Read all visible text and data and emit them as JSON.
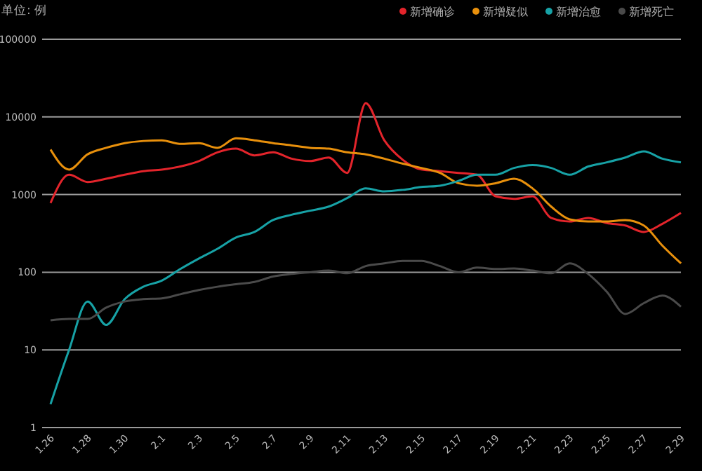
{
  "chart_data": {
    "type": "line",
    "ylabel": "单位: 例",
    "categories": [
      "1.26",
      null,
      "1.28",
      null,
      "1.30",
      null,
      "2.1",
      null,
      "2.3",
      null,
      "2.5",
      null,
      "2.7",
      null,
      "2.9",
      null,
      "2.11",
      null,
      "2.13",
      null,
      "2.15",
      null,
      "2.17",
      null,
      "2.19",
      null,
      "2.21",
      null,
      "2.23",
      null,
      "2.25",
      null,
      "2.27",
      null,
      "2.29"
    ],
    "series": [
      {
        "name": "新增确诊",
        "color": "#e3242b",
        "values": [
          780,
          1800,
          1450,
          1600,
          1800,
          2000,
          2100,
          2300,
          2700,
          3500,
          3900,
          3200,
          3500,
          2900,
          2700,
          3000,
          1900,
          15000,
          5000,
          2800,
          2100,
          2000,
          1900,
          1800,
          950,
          880,
          950,
          500,
          450,
          500,
          430,
          400,
          330,
          420,
          580
        ]
      },
      {
        "name": "新增疑似",
        "color": "#e8900c",
        "values": [
          3800,
          2100,
          3300,
          4000,
          4600,
          4900,
          5000,
          4500,
          4600,
          4000,
          5300,
          5000,
          4600,
          4300,
          4000,
          3900,
          3500,
          3300,
          2900,
          2500,
          2200,
          1900,
          1400,
          1300,
          1400,
          1600,
          1200,
          700,
          480,
          450,
          450,
          470,
          400,
          220,
          130
        ]
      },
      {
        "name": "新增治愈",
        "color": "#17a2a6",
        "values": [
          2,
          10,
          42,
          21,
          45,
          65,
          78,
          110,
          150,
          200,
          280,
          330,
          470,
          550,
          620,
          700,
          900,
          1200,
          1100,
          1150,
          1250,
          1300,
          1500,
          1800,
          1800,
          2200,
          2400,
          2200,
          1800,
          2300,
          2600,
          3000,
          3600,
          2900,
          2600
        ]
      },
      {
        "name": "新增死亡",
        "color": "#4a4a4a",
        "values": [
          24,
          25,
          25,
          35,
          42,
          45,
          46,
          52,
          59,
          65,
          70,
          75,
          88,
          95,
          100,
          105,
          97,
          120,
          130,
          140,
          140,
          120,
          100,
          115,
          110,
          112,
          105,
          97,
          130,
          95,
          56,
          29,
          40,
          50,
          36
        ]
      }
    ],
    "log": true,
    "ylim": [
      1,
      100000
    ],
    "yticks": [
      1,
      10,
      100,
      1000,
      10000,
      100000
    ],
    "grid": "y",
    "legend": "top right",
    "marker": "none",
    "line_style": "solid"
  }
}
